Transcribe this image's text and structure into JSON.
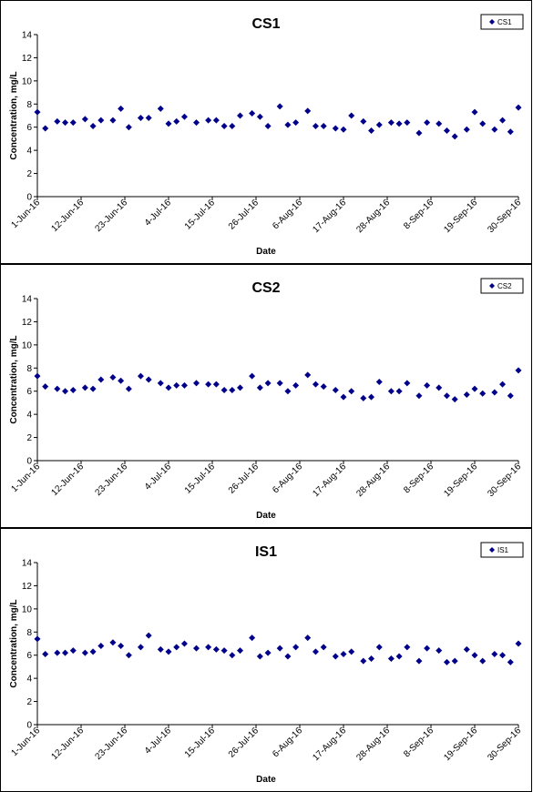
{
  "chart_data": [
    {
      "type": "scatter",
      "title": "CS1",
      "xlabel": "Date",
      "ylabel": "Concentration, mg/L",
      "ylim": [
        0,
        14
      ],
      "yticks": [
        "0",
        "2",
        "4",
        "6",
        "8",
        "10",
        "12",
        "14"
      ],
      "xlim": [
        "2016-06-01",
        "2016-09-30"
      ],
      "xticks": [
        "1-Jun-16",
        "12-Jun-16",
        "23-Jun-16",
        "4-Jul-16",
        "15-Jul-16",
        "26-Jul-16",
        "6-Aug-16",
        "17-Aug-16",
        "28-Aug-16",
        "8-Sep-16",
        "19-Sep-16",
        "30-Sep-16"
      ],
      "legend": "top-right",
      "marker_color": "#00008B",
      "series": [
        {
          "name": "CS1",
          "points": [
            [
              "2016-06-01",
              7.3
            ],
            [
              "2016-06-03",
              5.9
            ],
            [
              "2016-06-06",
              6.5
            ],
            [
              "2016-06-08",
              6.4
            ],
            [
              "2016-06-10",
              6.4
            ],
            [
              "2016-06-13",
              6.7
            ],
            [
              "2016-06-15",
              6.1
            ],
            [
              "2016-06-17",
              6.6
            ],
            [
              "2016-06-20",
              6.6
            ],
            [
              "2016-06-22",
              7.6
            ],
            [
              "2016-06-24",
              6.0
            ],
            [
              "2016-06-27",
              6.8
            ],
            [
              "2016-06-29",
              6.8
            ],
            [
              "2016-07-02",
              7.6
            ],
            [
              "2016-07-04",
              6.3
            ],
            [
              "2016-07-06",
              6.5
            ],
            [
              "2016-07-08",
              6.9
            ],
            [
              "2016-07-11",
              6.4
            ],
            [
              "2016-07-14",
              6.6
            ],
            [
              "2016-07-16",
              6.6
            ],
            [
              "2016-07-18",
              6.1
            ],
            [
              "2016-07-20",
              6.1
            ],
            [
              "2016-07-22",
              7.0
            ],
            [
              "2016-07-25",
              7.2
            ],
            [
              "2016-07-27",
              6.9
            ],
            [
              "2016-07-29",
              6.1
            ],
            [
              "2016-08-01",
              7.8
            ],
            [
              "2016-08-03",
              6.2
            ],
            [
              "2016-08-05",
              6.4
            ],
            [
              "2016-08-08",
              7.4
            ],
            [
              "2016-08-10",
              6.1
            ],
            [
              "2016-08-12",
              6.1
            ],
            [
              "2016-08-15",
              5.9
            ],
            [
              "2016-08-17",
              5.8
            ],
            [
              "2016-08-19",
              7.0
            ],
            [
              "2016-08-22",
              6.5
            ],
            [
              "2016-08-24",
              5.7
            ],
            [
              "2016-08-26",
              6.2
            ],
            [
              "2016-08-29",
              6.4
            ],
            [
              "2016-08-31",
              6.3
            ],
            [
              "2016-09-02",
              6.4
            ],
            [
              "2016-09-05",
              5.5
            ],
            [
              "2016-09-07",
              6.4
            ],
            [
              "2016-09-10",
              6.3
            ],
            [
              "2016-09-12",
              5.7
            ],
            [
              "2016-09-14",
              5.2
            ],
            [
              "2016-09-17",
              5.8
            ],
            [
              "2016-09-19",
              7.3
            ],
            [
              "2016-09-21",
              6.3
            ],
            [
              "2016-09-24",
              5.8
            ],
            [
              "2016-09-26",
              6.6
            ],
            [
              "2016-09-28",
              5.6
            ],
            [
              "2016-09-30",
              7.7
            ]
          ]
        }
      ]
    },
    {
      "type": "scatter",
      "title": "CS2",
      "xlabel": "Date",
      "ylabel": "Concentration, mg/L",
      "ylim": [
        0,
        14
      ],
      "yticks": [
        "0",
        "2",
        "4",
        "6",
        "8",
        "10",
        "12",
        "14"
      ],
      "xlim": [
        "2016-06-01",
        "2016-09-30"
      ],
      "xticks": [
        "1-Jun-16",
        "12-Jun-16",
        "23-Jun-16",
        "4-Jul-16",
        "15-Jul-16",
        "26-Jul-16",
        "6-Aug-16",
        "17-Aug-16",
        "28-Aug-16",
        "8-Sep-16",
        "19-Sep-16",
        "30-Sep-16"
      ],
      "legend": "top-right",
      "marker_color": "#00008B",
      "series": [
        {
          "name": "CS2",
          "points": [
            [
              "2016-06-01",
              7.3
            ],
            [
              "2016-06-03",
              6.4
            ],
            [
              "2016-06-06",
              6.2
            ],
            [
              "2016-06-08",
              6.0
            ],
            [
              "2016-06-10",
              6.1
            ],
            [
              "2016-06-13",
              6.3
            ],
            [
              "2016-06-15",
              6.2
            ],
            [
              "2016-06-17",
              7.0
            ],
            [
              "2016-06-20",
              7.2
            ],
            [
              "2016-06-22",
              6.9
            ],
            [
              "2016-06-24",
              6.2
            ],
            [
              "2016-06-27",
              7.3
            ],
            [
              "2016-06-29",
              7.0
            ],
            [
              "2016-07-02",
              6.7
            ],
            [
              "2016-07-04",
              6.3
            ],
            [
              "2016-07-06",
              6.5
            ],
            [
              "2016-07-08",
              6.5
            ],
            [
              "2016-07-11",
              6.7
            ],
            [
              "2016-07-14",
              6.6
            ],
            [
              "2016-07-16",
              6.6
            ],
            [
              "2016-07-18",
              6.1
            ],
            [
              "2016-07-20",
              6.1
            ],
            [
              "2016-07-22",
              6.3
            ],
            [
              "2016-07-25",
              7.3
            ],
            [
              "2016-07-27",
              6.3
            ],
            [
              "2016-07-29",
              6.7
            ],
            [
              "2016-08-01",
              6.7
            ],
            [
              "2016-08-03",
              6.0
            ],
            [
              "2016-08-05",
              6.5
            ],
            [
              "2016-08-08",
              7.4
            ],
            [
              "2016-08-10",
              6.6
            ],
            [
              "2016-08-12",
              6.4
            ],
            [
              "2016-08-15",
              6.1
            ],
            [
              "2016-08-17",
              5.5
            ],
            [
              "2016-08-19",
              6.0
            ],
            [
              "2016-08-22",
              5.4
            ],
            [
              "2016-08-24",
              5.5
            ],
            [
              "2016-08-26",
              6.8
            ],
            [
              "2016-08-29",
              6.0
            ],
            [
              "2016-08-31",
              6.0
            ],
            [
              "2016-09-02",
              6.7
            ],
            [
              "2016-09-05",
              5.6
            ],
            [
              "2016-09-07",
              6.5
            ],
            [
              "2016-09-10",
              6.3
            ],
            [
              "2016-09-12",
              5.6
            ],
            [
              "2016-09-14",
              5.3
            ],
            [
              "2016-09-17",
              5.7
            ],
            [
              "2016-09-19",
              6.2
            ],
            [
              "2016-09-21",
              5.8
            ],
            [
              "2016-09-24",
              5.9
            ],
            [
              "2016-09-26",
              6.6
            ],
            [
              "2016-09-28",
              5.6
            ],
            [
              "2016-09-30",
              7.8
            ]
          ]
        }
      ]
    },
    {
      "type": "scatter",
      "title": "IS1",
      "xlabel": "Date",
      "ylabel": "Concentration, mg/L",
      "ylim": [
        0,
        14
      ],
      "yticks": [
        "0",
        "2",
        "4",
        "6",
        "8",
        "10",
        "12",
        "14"
      ],
      "xlim": [
        "2016-06-01",
        "2016-09-30"
      ],
      "xticks": [
        "1-Jun-16",
        "12-Jun-16",
        "23-Jun-16",
        "4-Jul-16",
        "15-Jul-16",
        "26-Jul-16",
        "6-Aug-16",
        "17-Aug-16",
        "28-Aug-16",
        "8-Sep-16",
        "19-Sep-16",
        "30-Sep-16"
      ],
      "legend": "top-right",
      "marker_color": "#00008B",
      "series": [
        {
          "name": "IS1",
          "points": [
            [
              "2016-06-01",
              7.4
            ],
            [
              "2016-06-03",
              6.1
            ],
            [
              "2016-06-06",
              6.2
            ],
            [
              "2016-06-08",
              6.2
            ],
            [
              "2016-06-10",
              6.4
            ],
            [
              "2016-06-13",
              6.2
            ],
            [
              "2016-06-15",
              6.3
            ],
            [
              "2016-06-17",
              6.8
            ],
            [
              "2016-06-20",
              7.1
            ],
            [
              "2016-06-22",
              6.8
            ],
            [
              "2016-06-24",
              6.0
            ],
            [
              "2016-06-27",
              6.7
            ],
            [
              "2016-06-29",
              7.7
            ],
            [
              "2016-07-02",
              6.5
            ],
            [
              "2016-07-04",
              6.3
            ],
            [
              "2016-07-06",
              6.7
            ],
            [
              "2016-07-08",
              7.0
            ],
            [
              "2016-07-11",
              6.6
            ],
            [
              "2016-07-14",
              6.7
            ],
            [
              "2016-07-16",
              6.5
            ],
            [
              "2016-07-18",
              6.4
            ],
            [
              "2016-07-20",
              6.0
            ],
            [
              "2016-07-22",
              6.4
            ],
            [
              "2016-07-25",
              7.5
            ],
            [
              "2016-07-27",
              5.9
            ],
            [
              "2016-07-29",
              6.2
            ],
            [
              "2016-08-01",
              6.6
            ],
            [
              "2016-08-03",
              5.9
            ],
            [
              "2016-08-05",
              6.7
            ],
            [
              "2016-08-08",
              7.5
            ],
            [
              "2016-08-10",
              6.3
            ],
            [
              "2016-08-12",
              6.7
            ],
            [
              "2016-08-15",
              5.9
            ],
            [
              "2016-08-17",
              6.1
            ],
            [
              "2016-08-19",
              6.3
            ],
            [
              "2016-08-22",
              5.5
            ],
            [
              "2016-08-24",
              5.7
            ],
            [
              "2016-08-26",
              6.7
            ],
            [
              "2016-08-29",
              5.7
            ],
            [
              "2016-08-31",
              5.9
            ],
            [
              "2016-09-02",
              6.7
            ],
            [
              "2016-09-05",
              5.5
            ],
            [
              "2016-09-07",
              6.6
            ],
            [
              "2016-09-10",
              6.4
            ],
            [
              "2016-09-12",
              5.4
            ],
            [
              "2016-09-14",
              5.5
            ],
            [
              "2016-09-17",
              6.5
            ],
            [
              "2016-09-19",
              6.0
            ],
            [
              "2016-09-21",
              5.5
            ],
            [
              "2016-09-24",
              6.1
            ],
            [
              "2016-09-26",
              6.0
            ],
            [
              "2016-09-28",
              5.4
            ],
            [
              "2016-09-30",
              7.0
            ]
          ]
        }
      ]
    }
  ]
}
